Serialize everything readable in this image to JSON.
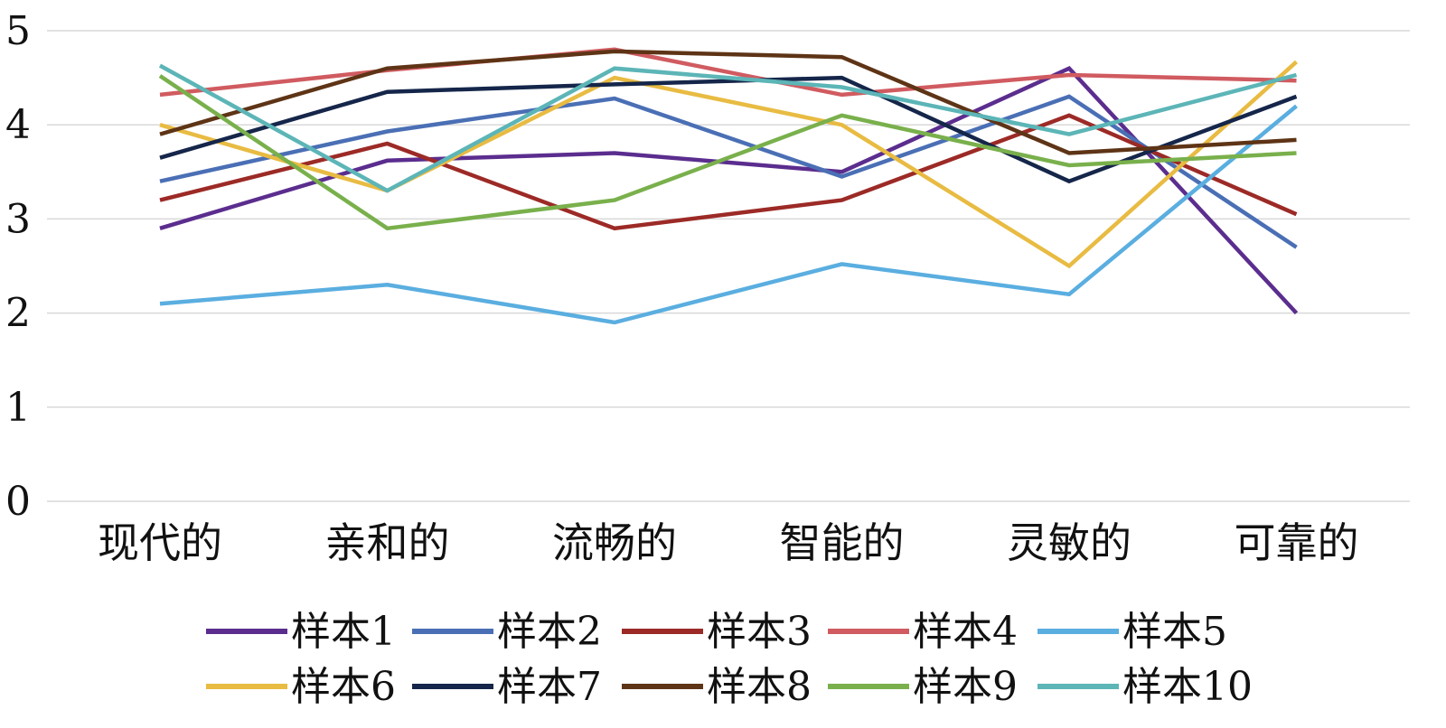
{
  "chart_data": {
    "type": "line",
    "title": "",
    "xlabel": "",
    "ylabel": "",
    "ylim": [
      0,
      5
    ],
    "yticks": [
      "0",
      "1",
      "2",
      "3",
      "4",
      "5"
    ],
    "grid": true,
    "legend_position": "bottom",
    "categories": [
      "现代的",
      "亲和的",
      "流畅的",
      "智能的",
      "灵敏的",
      "可靠的"
    ],
    "series": [
      {
        "name": "样本1",
        "color": "#5b2d8e",
        "values": [
          2.9,
          3.62,
          3.7,
          3.5,
          4.6,
          2.0
        ]
      },
      {
        "name": "样本2",
        "color": "#4a6fb5",
        "values": [
          3.4,
          3.93,
          4.28,
          3.45,
          4.3,
          2.7
        ]
      },
      {
        "name": "样本3",
        "color": "#9c2a26",
        "values": [
          3.2,
          3.8,
          2.9,
          3.2,
          4.1,
          3.05
        ]
      },
      {
        "name": "样本4",
        "color": "#d05b60",
        "values": [
          4.32,
          4.58,
          4.8,
          4.32,
          4.53,
          4.47
        ]
      },
      {
        "name": "样本5",
        "color": "#5aaee0",
        "values": [
          2.1,
          2.3,
          1.9,
          2.52,
          2.2,
          4.2
        ]
      },
      {
        "name": "样本6",
        "color": "#e8bb42",
        "values": [
          4.0,
          3.3,
          4.5,
          4.0,
          2.5,
          4.67
        ]
      },
      {
        "name": "样本7",
        "color": "#15264a",
        "values": [
          3.65,
          4.35,
          4.43,
          4.5,
          3.4,
          4.3
        ]
      },
      {
        "name": "样本8",
        "color": "#5e3416",
        "values": [
          3.9,
          4.6,
          4.78,
          4.72,
          3.7,
          3.84
        ]
      },
      {
        "name": "样本9",
        "color": "#79b04c",
        "values": [
          4.52,
          2.9,
          3.2,
          4.1,
          3.57,
          3.7
        ]
      },
      {
        "name": "样本10",
        "color": "#5cb5b7",
        "values": [
          4.63,
          3.3,
          4.6,
          4.4,
          3.9,
          4.53
        ]
      }
    ]
  }
}
